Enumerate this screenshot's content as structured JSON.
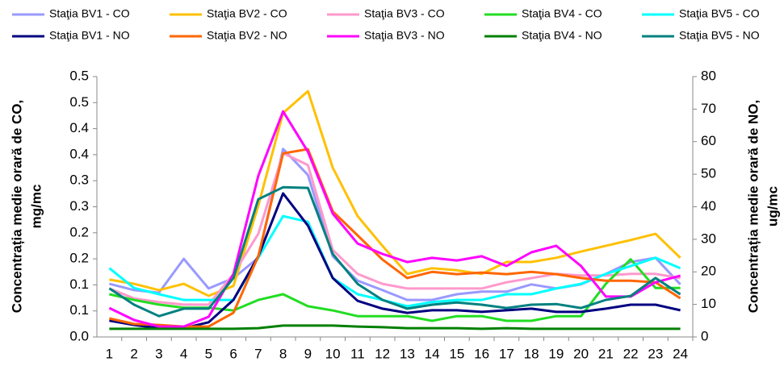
{
  "chart_data": {
    "type": "line",
    "ylabel": [
      "Concentrația medie orară de CO,",
      "mg/mc"
    ],
    "y2label": [
      "Concentrația medie orară de NO,",
      "ug/mc"
    ],
    "categories": [
      "1",
      "2",
      "3",
      "4",
      "5",
      "6",
      "7",
      "8",
      "9",
      "10",
      "11",
      "12",
      "13",
      "14",
      "15",
      "16",
      "17",
      "18",
      "19",
      "20",
      "21",
      "22",
      "23",
      "24"
    ],
    "ylim": [
      0,
      0.5
    ],
    "yticks": [
      {
        "value": 0,
        "label": "0.0"
      },
      {
        "value": 0.05,
        "label": "0.1"
      },
      {
        "value": 0.1,
        "label": "0.1"
      },
      {
        "value": 0.15,
        "label": "0.2"
      },
      {
        "value": 0.2,
        "label": "0.2"
      },
      {
        "value": 0.25,
        "label": "0.3"
      },
      {
        "value": 0.3,
        "label": "0.3"
      },
      {
        "value": 0.35,
        "label": "0.4"
      },
      {
        "value": 0.4,
        "label": "0.4"
      },
      {
        "value": 0.45,
        "label": "0.5"
      },
      {
        "value": 0.5,
        "label": "0.5"
      }
    ],
    "y2lim": [
      0,
      80
    ],
    "y2ticks": [
      0,
      10,
      20,
      30,
      40,
      50,
      60,
      70,
      80
    ],
    "grid": false,
    "series": [
      {
        "name": "Staţia BV1 - CO",
        "color": "#9999ff",
        "values": [
          0.102,
          0.09,
          0.085,
          0.15,
          0.093,
          0.113,
          0.152,
          0.361,
          0.311,
          0.155,
          0.108,
          0.09,
          0.071,
          0.071,
          0.082,
          0.087,
          0.087,
          0.101,
          0.093,
          0.101,
          0.121,
          0.144,
          0.152,
          0.101
        ]
      },
      {
        "name": "Staţia BV2 - CO",
        "color": "#ffc000",
        "values": [
          0.11,
          0.102,
          0.09,
          0.102,
          0.079,
          0.098,
          0.252,
          0.43,
          0.472,
          0.325,
          0.232,
          0.175,
          0.121,
          0.132,
          0.128,
          0.121,
          0.144,
          0.144,
          0.152,
          0.164,
          0.175,
          0.186,
          0.198,
          0.152
        ]
      },
      {
        "name": "Staţia BV3 - CO",
        "color": "#ff99cc",
        "values": [
          0.093,
          0.074,
          0.067,
          0.062,
          0.062,
          0.121,
          0.198,
          0.353,
          0.33,
          0.167,
          0.121,
          0.102,
          0.093,
          0.093,
          0.093,
          0.093,
          0.105,
          0.113,
          0.121,
          0.118,
          0.118,
          0.121,
          0.121,
          0.113
        ]
      },
      {
        "name": "Staţia BV4 - CO",
        "color": "#22dd22",
        "values": [
          0.082,
          0.071,
          0.062,
          0.056,
          0.056,
          0.051,
          0.071,
          0.082,
          0.059,
          0.051,
          0.04,
          0.04,
          0.04,
          0.031,
          0.04,
          0.04,
          0.031,
          0.031,
          0.04,
          0.04,
          0.102,
          0.149,
          0.094,
          0.094
        ]
      },
      {
        "name": "Staţia BV5 - CO",
        "color": "#00ffff",
        "values": [
          0.132,
          0.094,
          0.082,
          0.071,
          0.071,
          0.071,
          0.152,
          0.232,
          0.221,
          0.113,
          0.082,
          0.071,
          0.059,
          0.067,
          0.071,
          0.071,
          0.082,
          0.082,
          0.093,
          0.102,
          0.121,
          0.136,
          0.152,
          0.132
        ]
      },
      {
        "name": "Staţia BV1 - NO",
        "color": "#000080",
        "axis": "y2",
        "values": [
          5.0,
          3.7,
          2.7,
          2.7,
          4.5,
          11.4,
          24.8,
          44.1,
          34.2,
          18.1,
          11.1,
          8.7,
          7.4,
          8.2,
          8.2,
          7.7,
          8.2,
          8.7,
          7.7,
          7.7,
          8.7,
          9.9,
          9.9,
          8.2
        ]
      },
      {
        "name": "Staţia BV2 - NO",
        "color": "#ff6600",
        "axis": "y2",
        "values": [
          5.7,
          4.0,
          3.7,
          3.2,
          3.2,
          7.4,
          24.8,
          56.4,
          57.7,
          38.6,
          31.2,
          23.8,
          18.1,
          20.0,
          19.3,
          19.8,
          19.3,
          20.0,
          19.3,
          18.1,
          17.3,
          17.3,
          16.8,
          11.9
        ]
      },
      {
        "name": "Staţia BV3 - NO",
        "color": "#ff00ff",
        "axis": "y2",
        "values": [
          8.9,
          5.2,
          3.2,
          3.2,
          6.2,
          19.3,
          49.5,
          69.3,
          56.9,
          37.9,
          28.7,
          25.5,
          23.0,
          24.3,
          23.5,
          24.8,
          21.8,
          26.0,
          28.0,
          21.8,
          12.4,
          12.4,
          16.8,
          18.8
        ]
      },
      {
        "name": "Staţia BV4 - NO",
        "color": "#008000",
        "axis": "y2",
        "values": [
          2.5,
          2.5,
          2.5,
          2.5,
          2.5,
          2.5,
          2.7,
          3.5,
          3.5,
          3.5,
          3.2,
          3.0,
          2.7,
          2.7,
          2.7,
          2.5,
          2.7,
          2.5,
          2.5,
          2.5,
          2.5,
          2.5,
          2.5,
          2.5
        ]
      },
      {
        "name": "Staţia BV5 - NO",
        "color": "#008080",
        "axis": "y2",
        "values": [
          14.9,
          9.9,
          6.4,
          8.7,
          8.7,
          18.1,
          42.3,
          46.0,
          45.8,
          25.5,
          16.3,
          11.4,
          8.7,
          9.9,
          10.6,
          9.9,
          8.9,
          9.9,
          10.1,
          8.9,
          11.4,
          12.6,
          18.1,
          13.1
        ]
      }
    ]
  }
}
